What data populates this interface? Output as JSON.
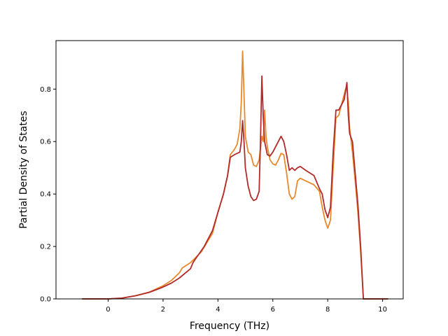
{
  "chart_data": {
    "type": "line",
    "title": "",
    "xlabel": "Frequency (THz)",
    "ylabel": "Partial Density of States",
    "xlim": [
      -1.9,
      10.75
    ],
    "ylim": [
      0.0,
      0.985
    ],
    "xticks": [
      0,
      2,
      4,
      6,
      8,
      10
    ],
    "yticks": [
      0.0,
      0.2,
      0.4,
      0.6,
      0.8
    ],
    "grid": false,
    "legend": "none",
    "series": [
      {
        "color": "#e8892b",
        "points": [
          [
            -0.95,
            0.0
          ],
          [
            0.0,
            0.0
          ],
          [
            0.5,
            0.003
          ],
          [
            1.0,
            0.012
          ],
          [
            1.5,
            0.026
          ],
          [
            2.0,
            0.05
          ],
          [
            2.3,
            0.07
          ],
          [
            2.6,
            0.1
          ],
          [
            2.7,
            0.118
          ],
          [
            3.0,
            0.138
          ],
          [
            3.4,
            0.18
          ],
          [
            3.8,
            0.25
          ],
          [
            4.0,
            0.33
          ],
          [
            4.2,
            0.4
          ],
          [
            4.35,
            0.47
          ],
          [
            4.45,
            0.55
          ],
          [
            4.6,
            0.57
          ],
          [
            4.7,
            0.59
          ],
          [
            4.8,
            0.65
          ],
          [
            4.85,
            0.75
          ],
          [
            4.9,
            0.945
          ],
          [
            4.95,
            0.78
          ],
          [
            5.0,
            0.62
          ],
          [
            5.1,
            0.56
          ],
          [
            5.2,
            0.55
          ],
          [
            5.3,
            0.51
          ],
          [
            5.4,
            0.505
          ],
          [
            5.5,
            0.53
          ],
          [
            5.6,
            0.62
          ],
          [
            5.65,
            0.6
          ],
          [
            5.7,
            0.72
          ],
          [
            5.75,
            0.62
          ],
          [
            5.8,
            0.58
          ],
          [
            5.9,
            0.53
          ],
          [
            6.0,
            0.515
          ],
          [
            6.1,
            0.51
          ],
          [
            6.2,
            0.53
          ],
          [
            6.3,
            0.555
          ],
          [
            6.4,
            0.55
          ],
          [
            6.5,
            0.48
          ],
          [
            6.6,
            0.4
          ],
          [
            6.7,
            0.38
          ],
          [
            6.8,
            0.39
          ],
          [
            6.9,
            0.45
          ],
          [
            7.0,
            0.46
          ],
          [
            7.2,
            0.45
          ],
          [
            7.5,
            0.435
          ],
          [
            7.7,
            0.41
          ],
          [
            7.8,
            0.35
          ],
          [
            7.9,
            0.3
          ],
          [
            8.0,
            0.27
          ],
          [
            8.1,
            0.3
          ],
          [
            8.2,
            0.5
          ],
          [
            8.3,
            0.69
          ],
          [
            8.4,
            0.7
          ],
          [
            8.5,
            0.74
          ],
          [
            8.6,
            0.78
          ],
          [
            8.65,
            0.8
          ],
          [
            8.7,
            0.8
          ],
          [
            8.75,
            0.75
          ],
          [
            8.8,
            0.65
          ],
          [
            8.9,
            0.56
          ],
          [
            9.0,
            0.45
          ],
          [
            9.1,
            0.33
          ],
          [
            9.2,
            0.18
          ],
          [
            9.3,
            0.0
          ],
          [
            10.2,
            0.0
          ]
        ]
      },
      {
        "color": "#b22a2a",
        "points": [
          [
            -0.95,
            0.0
          ],
          [
            0.0,
            0.0
          ],
          [
            0.5,
            0.003
          ],
          [
            1.0,
            0.012
          ],
          [
            1.5,
            0.025
          ],
          [
            2.0,
            0.045
          ],
          [
            2.3,
            0.06
          ],
          [
            2.6,
            0.08
          ],
          [
            3.0,
            0.115
          ],
          [
            3.1,
            0.14
          ],
          [
            3.5,
            0.2
          ],
          [
            3.8,
            0.26
          ],
          [
            4.0,
            0.33
          ],
          [
            4.2,
            0.4
          ],
          [
            4.35,
            0.47
          ],
          [
            4.45,
            0.54
          ],
          [
            4.6,
            0.55
          ],
          [
            4.8,
            0.56
          ],
          [
            4.85,
            0.6
          ],
          [
            4.9,
            0.68
          ],
          [
            4.95,
            0.6
          ],
          [
            5.0,
            0.5
          ],
          [
            5.1,
            0.43
          ],
          [
            5.2,
            0.39
          ],
          [
            5.3,
            0.375
          ],
          [
            5.4,
            0.38
          ],
          [
            5.5,
            0.41
          ],
          [
            5.55,
            0.6
          ],
          [
            5.6,
            0.85
          ],
          [
            5.65,
            0.7
          ],
          [
            5.7,
            0.6
          ],
          [
            5.8,
            0.55
          ],
          [
            5.9,
            0.545
          ],
          [
            6.0,
            0.56
          ],
          [
            6.1,
            0.58
          ],
          [
            6.2,
            0.6
          ],
          [
            6.3,
            0.62
          ],
          [
            6.4,
            0.6
          ],
          [
            6.5,
            0.55
          ],
          [
            6.6,
            0.49
          ],
          [
            6.7,
            0.5
          ],
          [
            6.8,
            0.49
          ],
          [
            6.9,
            0.5
          ],
          [
            7.0,
            0.505
          ],
          [
            7.2,
            0.49
          ],
          [
            7.5,
            0.47
          ],
          [
            7.7,
            0.42
          ],
          [
            7.8,
            0.4
          ],
          [
            7.9,
            0.34
          ],
          [
            8.0,
            0.31
          ],
          [
            8.1,
            0.35
          ],
          [
            8.2,
            0.56
          ],
          [
            8.3,
            0.72
          ],
          [
            8.4,
            0.72
          ],
          [
            8.5,
            0.74
          ],
          [
            8.6,
            0.76
          ],
          [
            8.7,
            0.825
          ],
          [
            8.75,
            0.7
          ],
          [
            8.8,
            0.63
          ],
          [
            8.9,
            0.6
          ],
          [
            9.0,
            0.48
          ],
          [
            9.1,
            0.36
          ],
          [
            9.2,
            0.2
          ],
          [
            9.3,
            0.0
          ],
          [
            10.2,
            0.0
          ]
        ]
      }
    ]
  }
}
